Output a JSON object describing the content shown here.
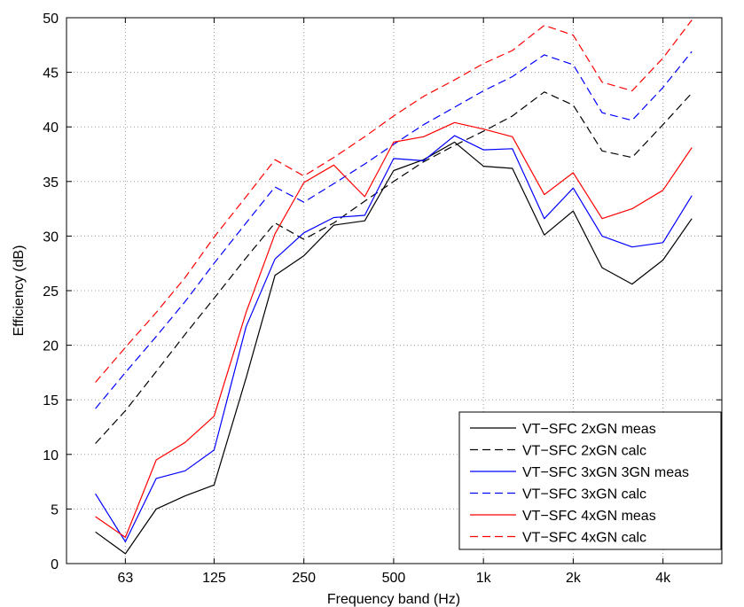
{
  "chart_data": {
    "type": "line",
    "xlabel": "Frequency band (Hz)",
    "ylabel": "Efficiency (dB)",
    "x_scale": "log",
    "x": [
      50,
      63,
      80,
      100,
      125,
      160,
      200,
      250,
      315,
      400,
      500,
      630,
      800,
      1000,
      1250,
      1600,
      2000,
      2500,
      3150,
      4000,
      5000
    ],
    "xlim": [
      40,
      6300
    ],
    "ylim": [
      0,
      50
    ],
    "xticks": [
      {
        "value": 63,
        "label": "63"
      },
      {
        "value": 125,
        "label": "125"
      },
      {
        "value": 250,
        "label": "250"
      },
      {
        "value": 500,
        "label": "500"
      },
      {
        "value": 1000,
        "label": "1k"
      },
      {
        "value": 2000,
        "label": "2k"
      },
      {
        "value": 4000,
        "label": "4k"
      }
    ],
    "yticks": [
      "0",
      "5",
      "10",
      "15",
      "20",
      "25",
      "30",
      "35",
      "40",
      "45",
      "50"
    ],
    "grid": "dotted",
    "legend_position": "bottom-right",
    "series": [
      {
        "name": "VT−SFC 2xGN meas",
        "color": "#000000",
        "dash": "solid",
        "values": [
          2.9,
          0.9,
          5.0,
          6.2,
          7.2,
          17.0,
          26.4,
          28.2,
          31.0,
          31.4,
          36.0,
          37.0,
          38.6,
          36.4,
          36.2,
          30.1,
          32.3,
          27.1,
          25.6,
          27.8,
          31.6
        ]
      },
      {
        "name": "VT−SFC 2xGN calc",
        "color": "#000000",
        "dash": "dashed",
        "values": [
          11.0,
          14.0,
          17.6,
          21.0,
          24.3,
          28.0,
          31.2,
          29.7,
          31.2,
          33.2,
          35.0,
          36.8,
          38.3,
          39.6,
          41.0,
          43.2,
          42.0,
          37.8,
          37.2,
          40.2,
          43.1
        ]
      },
      {
        "name": "VT−SFC 3xGN 3GN meas",
        "color": "#0000ff",
        "dash": "solid",
        "values": [
          6.4,
          2.0,
          7.8,
          8.5,
          10.4,
          21.7,
          27.9,
          30.3,
          31.7,
          31.9,
          37.1,
          36.9,
          39.2,
          37.9,
          38.0,
          31.6,
          34.4,
          30.0,
          29.0,
          29.4,
          33.7
        ]
      },
      {
        "name": "VT−SFC 3xGN calc",
        "color": "#0000ff",
        "dash": "dashed",
        "values": [
          14.2,
          17.5,
          20.8,
          24.0,
          27.5,
          31.2,
          34.5,
          33.1,
          34.8,
          36.6,
          38.4,
          40.2,
          41.8,
          43.3,
          44.6,
          46.6,
          45.7,
          41.3,
          40.6,
          43.6,
          46.9
        ]
      },
      {
        "name": "VT−SFC 4xGN meas",
        "color": "#ff0000",
        "dash": "solid",
        "values": [
          4.3,
          2.4,
          9.5,
          11.1,
          13.5,
          23.0,
          30.2,
          34.9,
          36.5,
          33.6,
          38.6,
          39.1,
          40.4,
          39.8,
          39.1,
          33.8,
          35.8,
          31.6,
          32.5,
          34.2,
          38.1
        ]
      },
      {
        "name": "VT−SFC 4xGN calc",
        "color": "#ff0000",
        "dash": "dashed",
        "values": [
          16.6,
          19.8,
          23.0,
          26.2,
          29.9,
          33.6,
          37.0,
          35.5,
          37.2,
          39.1,
          41.0,
          42.8,
          44.3,
          45.8,
          47.0,
          49.3,
          48.4,
          44.1,
          43.3,
          46.3,
          49.8
        ]
      }
    ]
  }
}
